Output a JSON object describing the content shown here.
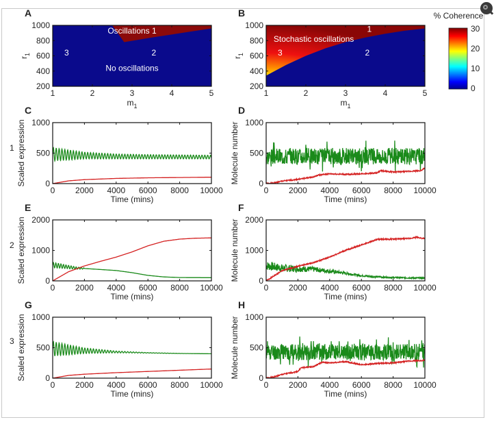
{
  "figure": {
    "colorbar": {
      "title": "% Coherence",
      "ticks": [
        "0",
        "10",
        "20",
        "30"
      ],
      "range": [
        0,
        30
      ],
      "colormap": "jet"
    },
    "row_labels": [
      "1",
      "2",
      "3"
    ],
    "zoom_button_icon": "magnifier-icon"
  },
  "chart_data": [
    {
      "panel": "A",
      "type": "heatmap",
      "xlabel": "m1",
      "ylabel": "r1",
      "xlim": [
        1,
        5
      ],
      "ylim": [
        200,
        1000
      ],
      "xticks": [
        "1",
        "2",
        "3",
        "4",
        "5"
      ],
      "yticks": [
        "200",
        "400",
        "600",
        "800",
        "1000"
      ],
      "regions": [
        {
          "name": "Oscillations",
          "color": "#8b0a0a",
          "boundary_m1": [
            2.5,
            2.8,
            3.5,
            4.0,
            4.5,
            5.0
          ],
          "boundary_r1": [
            1000,
            780,
            840,
            880,
            920,
            960
          ]
        },
        {
          "name": "No oscillations",
          "color": "#0a0a8c"
        }
      ],
      "annotations": [
        {
          "text": "Oscillations 1",
          "m1": 3.0,
          "r1": 930
        },
        {
          "text": "3",
          "m1": 1.35,
          "r1": 640
        },
        {
          "text": "2",
          "m1": 3.55,
          "r1": 640
        },
        {
          "text": "No oscillations",
          "m1": 3.0,
          "r1": 440
        }
      ]
    },
    {
      "panel": "B",
      "type": "heatmap",
      "xlabel": "m1",
      "ylabel": "r1",
      "xlim": [
        1,
        5
      ],
      "ylim": [
        200,
        1000
      ],
      "xticks": [
        "1",
        "2",
        "3",
        "4",
        "5"
      ],
      "yticks": [
        "200",
        "400",
        "600",
        "800",
        "1000"
      ],
      "boundary_m1": [
        1.0,
        1.5,
        2.0,
        2.5,
        3.0,
        3.5,
        4.0,
        4.5,
        5.0
      ],
      "boundary_r1": [
        340,
        480,
        600,
        700,
        780,
        840,
        890,
        930,
        960
      ],
      "coherence_note": "High (~30%) above boundary, peaking yellow/green (~20%) near m1=1, r1=350-450; 0 below boundary",
      "annotations": [
        {
          "text": "Stochastic oscillations",
          "m1": 2.2,
          "r1": 820
        },
        {
          "text": "1",
          "m1": 3.6,
          "r1": 950
        },
        {
          "text": "3",
          "m1": 1.35,
          "r1": 640
        },
        {
          "text": "2",
          "m1": 3.55,
          "r1": 640
        }
      ]
    },
    {
      "panel": "C",
      "type": "line",
      "row": "1",
      "xlabel": "Time (mins)",
      "ylabel": "Scaled expression",
      "xlim": [
        0,
        10000
      ],
      "ylim": [
        0,
        1000
      ],
      "xticks": [
        "0",
        "2000",
        "4000",
        "6000",
        "8000",
        "10000"
      ],
      "yticks": [
        "0",
        "500",
        "1000"
      ],
      "series": [
        {
          "name": "green",
          "color": "#1a8a1a",
          "kind": "damped-oscillation",
          "mean": [
            480,
            460,
            445,
            440,
            438,
            435
          ],
          "amplitude": [
            110,
            55,
            40,
            35,
            32,
            30
          ],
          "period": 180
        },
        {
          "name": "red",
          "color": "#d42020",
          "kind": "smooth",
          "x": [
            0,
            1000,
            2000,
            4000,
            6000,
            8000,
            10000
          ],
          "y": [
            0,
            45,
            65,
            85,
            95,
            100,
            105
          ]
        }
      ]
    },
    {
      "panel": "D",
      "type": "line",
      "row": "1",
      "xlabel": "Time (mins)",
      "ylabel": "Molecule number",
      "xlim": [
        0,
        10000
      ],
      "ylim": [
        0,
        1000
      ],
      "xticks": [
        "0",
        "2000",
        "4000",
        "6000",
        "8000",
        "10000"
      ],
      "yticks": [
        "0",
        "500",
        "1000"
      ],
      "series": [
        {
          "name": "green",
          "color": "#1a8a1a",
          "kind": "noisy-oscillation",
          "mean": 450,
          "amplitude": 150,
          "seed": 3
        },
        {
          "name": "red",
          "color": "#d42020",
          "kind": "noisy",
          "x": [
            0,
            500,
            1000,
            2000,
            3000,
            3300,
            4000,
            5000,
            6000,
            7000,
            7200,
            8000,
            9000,
            9700,
            10000
          ],
          "y": [
            0,
            10,
            40,
            70,
            110,
            140,
            160,
            150,
            160,
            175,
            210,
            190,
            200,
            210,
            250
          ]
        }
      ]
    },
    {
      "panel": "E",
      "type": "line",
      "row": "2",
      "xlabel": "Time (mins)",
      "ylabel": "Scaled expression",
      "xlim": [
        0,
        10000
      ],
      "ylim": [
        0,
        2000
      ],
      "xticks": [
        "0",
        "2000",
        "4000",
        "6000",
        "8000",
        "10000"
      ],
      "yticks": [
        "0",
        "1000",
        "2000"
      ],
      "series": [
        {
          "name": "green",
          "color": "#1a8a1a",
          "kind": "damped-oscillation-then-smooth",
          "x": [
            0,
            1500,
            2500,
            4000,
            5000,
            6000,
            7000,
            8000,
            10000
          ],
          "y": [
            520,
            420,
            390,
            340,
            270,
            180,
            130,
            110,
            105
          ],
          "amplitude": [
            90,
            20
          ],
          "period": 160,
          "oscillation_until": 2000
        },
        {
          "name": "red",
          "color": "#d42020",
          "kind": "smooth",
          "x": [
            0,
            1000,
            2000,
            3000,
            4000,
            5000,
            6000,
            7000,
            8000,
            9000,
            10000
          ],
          "y": [
            0,
            300,
            490,
            640,
            780,
            950,
            1150,
            1300,
            1370,
            1400,
            1410
          ]
        }
      ]
    },
    {
      "panel": "F",
      "type": "line",
      "row": "2",
      "xlabel": "Time (mins)",
      "ylabel": "Molecule number",
      "xlim": [
        0,
        10000
      ],
      "ylim": [
        0,
        2000
      ],
      "xticks": [
        "0",
        "2000",
        "4000",
        "6000",
        "8000",
        "10000"
      ],
      "yticks": [
        "0",
        "1000",
        "2000"
      ],
      "series": [
        {
          "name": "green",
          "color": "#1a8a1a",
          "kind": "noisy-decay",
          "x": [
            0,
            1000,
            2000,
            3000,
            4000,
            5000,
            6000,
            7000,
            8000,
            10000
          ],
          "y": [
            500,
            420,
            400,
            380,
            320,
            250,
            170,
            130,
            110,
            90
          ],
          "amplitude": [
            150,
            25
          ],
          "seed": 7
        },
        {
          "name": "red",
          "color": "#d42020",
          "kind": "noisy",
          "x": [
            0,
            1000,
            2000,
            3000,
            4000,
            5000,
            6000,
            7000,
            8000,
            9000,
            9500,
            10000
          ],
          "y": [
            0,
            330,
            480,
            600,
            780,
            1000,
            1180,
            1360,
            1370,
            1390,
            1430,
            1380
          ]
        }
      ]
    },
    {
      "panel": "G",
      "type": "line",
      "row": "3",
      "xlabel": "Time (mins)",
      "ylabel": "Scaled expression",
      "xlim": [
        0,
        10000
      ],
      "ylim": [
        0,
        1000
      ],
      "xticks": [
        "0",
        "2000",
        "4000",
        "6000",
        "8000",
        "10000"
      ],
      "yticks": [
        "0",
        "500",
        "1000"
      ],
      "series": [
        {
          "name": "green",
          "color": "#1a8a1a",
          "kind": "damped-oscillation",
          "mean": [
            480,
            450,
            430,
            415,
            405,
            400
          ],
          "amplitude": [
            120,
            45,
            15,
            4,
            1,
            0
          ],
          "period": 180
        },
        {
          "name": "red",
          "color": "#d42020",
          "kind": "smooth",
          "x": [
            0,
            1000,
            2000,
            4000,
            6000,
            8000,
            10000
          ],
          "y": [
            0,
            45,
            65,
            90,
            110,
            130,
            150
          ]
        }
      ]
    },
    {
      "panel": "H",
      "type": "line",
      "row": "3",
      "xlabel": "Time (mins)",
      "ylabel": "Molecule number",
      "xlim": [
        0,
        10000
      ],
      "ylim": [
        0,
        1000
      ],
      "xticks": [
        "0",
        "2000",
        "4000",
        "6000",
        "8000",
        "10000"
      ],
      "yticks": [
        "0",
        "500",
        "1000"
      ],
      "series": [
        {
          "name": "green",
          "color": "#1a8a1a",
          "kind": "noisy-oscillation",
          "mean": 430,
          "amplitude": 150,
          "seed": 11
        },
        {
          "name": "red",
          "color": "#d42020",
          "kind": "noisy",
          "x": [
            0,
            500,
            1000,
            2000,
            2200,
            3000,
            3500,
            4000,
            5000,
            6000,
            7000,
            8000,
            9000,
            10000
          ],
          "y": [
            0,
            20,
            60,
            110,
            170,
            190,
            260,
            250,
            270,
            220,
            240,
            250,
            280,
            290
          ]
        }
      ]
    }
  ]
}
